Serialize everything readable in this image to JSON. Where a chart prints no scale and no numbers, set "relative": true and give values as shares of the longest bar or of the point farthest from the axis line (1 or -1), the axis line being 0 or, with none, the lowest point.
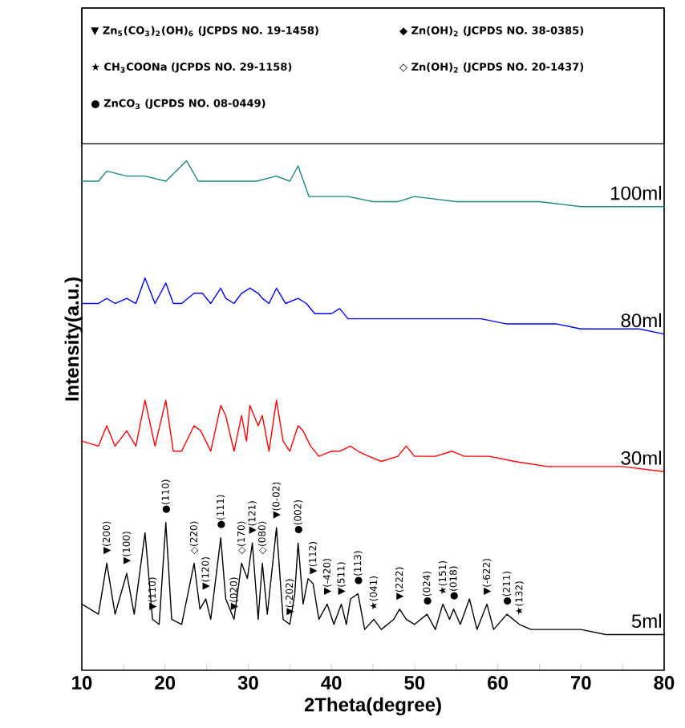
{
  "chart_data": {
    "type": "line",
    "relative": true,
    "xlabel": "2Theta(degree)",
    "ylabel": "Intensity(a.u.)",
    "xlim": [
      10,
      80
    ],
    "xticks": [
      10,
      {
        "value": 15,
        "label": null
      },
      20,
      {
        "value": 25,
        "label": null
      },
      30,
      {
        "value": 35,
        "label": null
      },
      40,
      {
        "value": 45,
        "label": null
      },
      50,
      {
        "value": 55,
        "label": null
      },
      60,
      {
        "value": 65,
        "label": null
      },
      70,
      {
        "value": 75,
        "label": null
      },
      80
    ],
    "series": [
      {
        "name": "5ml",
        "color": "#000000",
        "x": [
          10,
          12,
          13.0,
          14,
          15.4,
          16.3,
          17.6,
          18.5,
          19.3,
          20.1,
          20.8,
          22,
          23.5,
          24.2,
          24.9,
          25.5,
          26.7,
          27.3,
          28.3,
          29.2,
          29.9,
          30.5,
          31.2,
          31.7,
          32.3,
          33.4,
          34.2,
          35.0,
          35.6,
          36.0,
          36.6,
          37.2,
          37.8,
          38.5,
          39.5,
          40.3,
          41.2,
          41.8,
          42.3,
          43.2,
          44.0,
          45.1,
          46,
          47.5,
          48.2,
          49,
          50,
          51.5,
          52.5,
          53.4,
          54.2,
          54.7,
          55.5,
          56.6,
          57.5,
          58.7,
          59.5,
          61.1,
          62.6,
          64,
          67,
          70,
          73,
          76,
          80
        ],
        "values": [
          0.13,
          0.11,
          0.21,
          0.11,
          0.19,
          0.11,
          0.27,
          0.1,
          0.09,
          0.29,
          0.1,
          0.09,
          0.21,
          0.12,
          0.14,
          0.1,
          0.26,
          0.14,
          0.1,
          0.21,
          0.18,
          0.25,
          0.1,
          0.21,
          0.11,
          0.28,
          0.1,
          0.09,
          0.15,
          0.25,
          0.13,
          0.18,
          0.17,
          0.1,
          0.13,
          0.09,
          0.13,
          0.09,
          0.14,
          0.15,
          0.08,
          0.1,
          0.08,
          0.1,
          0.12,
          0.1,
          0.09,
          0.11,
          0.08,
          0.13,
          0.1,
          0.12,
          0.09,
          0.14,
          0.08,
          0.13,
          0.08,
          0.11,
          0.09,
          0.08,
          0.08,
          0.08,
          0.07,
          0.07,
          0.07
        ]
      },
      {
        "name": "30ml",
        "color": "#ff0000",
        "x": [
          10,
          12,
          13.0,
          14,
          15.4,
          16.5,
          17.6,
          18.8,
          20.1,
          21,
          22,
          23.5,
          24.3,
          25.5,
          26.7,
          27.3,
          28.3,
          29.2,
          29.8,
          30.2,
          31.2,
          31.7,
          32.5,
          33.4,
          34.2,
          35,
          36.0,
          36.6,
          37.5,
          38.5,
          40,
          41,
          42.3,
          43.2,
          44.5,
          46,
          48,
          49,
          50,
          51,
          52.5,
          54.5,
          56,
          59,
          62,
          66,
          70,
          75,
          80
        ],
        "values": [
          0.45,
          0.44,
          0.48,
          0.44,
          0.47,
          0.44,
          0.53,
          0.44,
          0.53,
          0.43,
          0.43,
          0.48,
          0.47,
          0.43,
          0.52,
          0.5,
          0.43,
          0.5,
          0.45,
          0.52,
          0.48,
          0.5,
          0.43,
          0.53,
          0.45,
          0.43,
          0.48,
          0.47,
          0.44,
          0.42,
          0.43,
          0.43,
          0.44,
          0.43,
          0.42,
          0.41,
          0.42,
          0.44,
          0.42,
          0.42,
          0.42,
          0.43,
          0.42,
          0.42,
          0.41,
          0.4,
          0.4,
          0.4,
          0.39
        ]
      },
      {
        "name": "80ml",
        "color": "#0000ff",
        "x": [
          10,
          12,
          13.0,
          14,
          15.4,
          16.5,
          17.6,
          18.8,
          20.1,
          21,
          22,
          23.5,
          24.5,
          25.5,
          26.7,
          27.3,
          28.3,
          29.2,
          30.2,
          31.2,
          31.7,
          32.5,
          33.4,
          34.5,
          36,
          37,
          38,
          40,
          41,
          42,
          44,
          46,
          48,
          50,
          52.5,
          55,
          58,
          61,
          64,
          67,
          70,
          74,
          77,
          80
        ],
        "values": [
          0.72,
          0.72,
          0.73,
          0.72,
          0.73,
          0.72,
          0.77,
          0.72,
          0.76,
          0.72,
          0.72,
          0.74,
          0.74,
          0.72,
          0.75,
          0.73,
          0.72,
          0.74,
          0.75,
          0.74,
          0.73,
          0.72,
          0.75,
          0.72,
          0.73,
          0.72,
          0.7,
          0.7,
          0.71,
          0.69,
          0.69,
          0.69,
          0.69,
          0.69,
          0.69,
          0.69,
          0.69,
          0.68,
          0.68,
          0.68,
          0.67,
          0.67,
          0.67,
          0.66
        ]
      },
      {
        "name": "100ml",
        "color": "#1a8a80",
        "x": [
          10,
          12,
          13.0,
          15.4,
          17.6,
          20.1,
          22.6,
          24,
          26.7,
          29,
          31,
          33.4,
          35,
          36,
          37.3,
          39,
          42,
          45,
          48,
          50,
          55,
          60,
          65,
          70,
          75,
          80
        ],
        "values": [
          0.96,
          0.96,
          0.98,
          0.97,
          0.97,
          0.96,
          1,
          0.96,
          0.96,
          0.96,
          0.96,
          0.97,
          0.96,
          0.99,
          0.93,
          0.93,
          0.93,
          0.92,
          0.92,
          0.93,
          0.92,
          0.92,
          0.92,
          0.91,
          0.91,
          0.91
        ]
      }
    ],
    "annotations": [
      "▼ Zn$_{5}$(CO$_{3}$)$_{2}$(OH)$_{6}$ (JCPDS NO. 19-1458)",
      "◆ Zn(OH)$_{2}$ (JCPDS NO. 38-0385)",
      "★ CH$_{3}$COONa (JCPDS NO. 29-1158)",
      "◇ Zn(OH)$_{2}$ (JCPDS NO. 20-1437)",
      "● ZnCO$_{3}$ (JCPDS NO. 08-0449)",
      {
        "text": "▼(200)",
        "x": 13.0,
        "y": 0.21
      },
      {
        "text": "▼(100)",
        "x": 15.4,
        "y": 0.19
      },
      {
        "text": "▼(110)",
        "x": 18.5,
        "y": 0.1
      },
      {
        "text": "●(110)",
        "x": 20.1,
        "y": 0.29
      },
      {
        "text": "◇(220)",
        "x": 23.5,
        "y": 0.21
      },
      {
        "text": "▼(120)",
        "x": 24.9,
        "y": 0.14
      },
      {
        "text": "●(111)",
        "x": 26.7,
        "y": 0.26
      },
      {
        "text": "▼(020)",
        "x": 28.3,
        "y": 0.1
      },
      {
        "text": "◇(170)",
        "x": 29.2,
        "y": 0.21
      },
      {
        "text": "▼(121)",
        "x": 30.5,
        "y": 0.25
      },
      {
        "text": "◇(080)",
        "x": 31.7,
        "y": 0.21
      },
      {
        "text": "▼(0-02)",
        "x": 33.4,
        "y": 0.28
      },
      {
        "text": "▼(-202)",
        "x": 35.0,
        "y": 0.09
      },
      {
        "text": "●(002)",
        "x": 36.0,
        "y": 0.25
      },
      {
        "text": "▼(112)",
        "x": 37.8,
        "y": 0.17
      },
      {
        "text": "▼(-420)",
        "x": 39.5,
        "y": 0.13
      },
      {
        "text": "▼(511)",
        "x": 41.2,
        "y": 0.13
      },
      {
        "text": "●(113)",
        "x": 43.2,
        "y": 0.15
      },
      {
        "text": "★(041)",
        "x": 45.1,
        "y": 0.1
      },
      {
        "text": "▼(222)",
        "x": 48.2,
        "y": 0.12
      },
      {
        "text": "●(024)",
        "x": 51.5,
        "y": 0.11
      },
      {
        "text": "★(151)",
        "x": 53.4,
        "y": 0.13
      },
      {
        "text": "●(018)",
        "x": 54.7,
        "y": 0.12
      },
      {
        "text": "▼(-622)",
        "x": 58.7,
        "y": 0.13
      },
      {
        "text": "●(211)",
        "x": 61.1,
        "y": 0.11
      },
      {
        "text": "★(132)",
        "x": 62.6,
        "y": 0.09
      }
    ]
  }
}
